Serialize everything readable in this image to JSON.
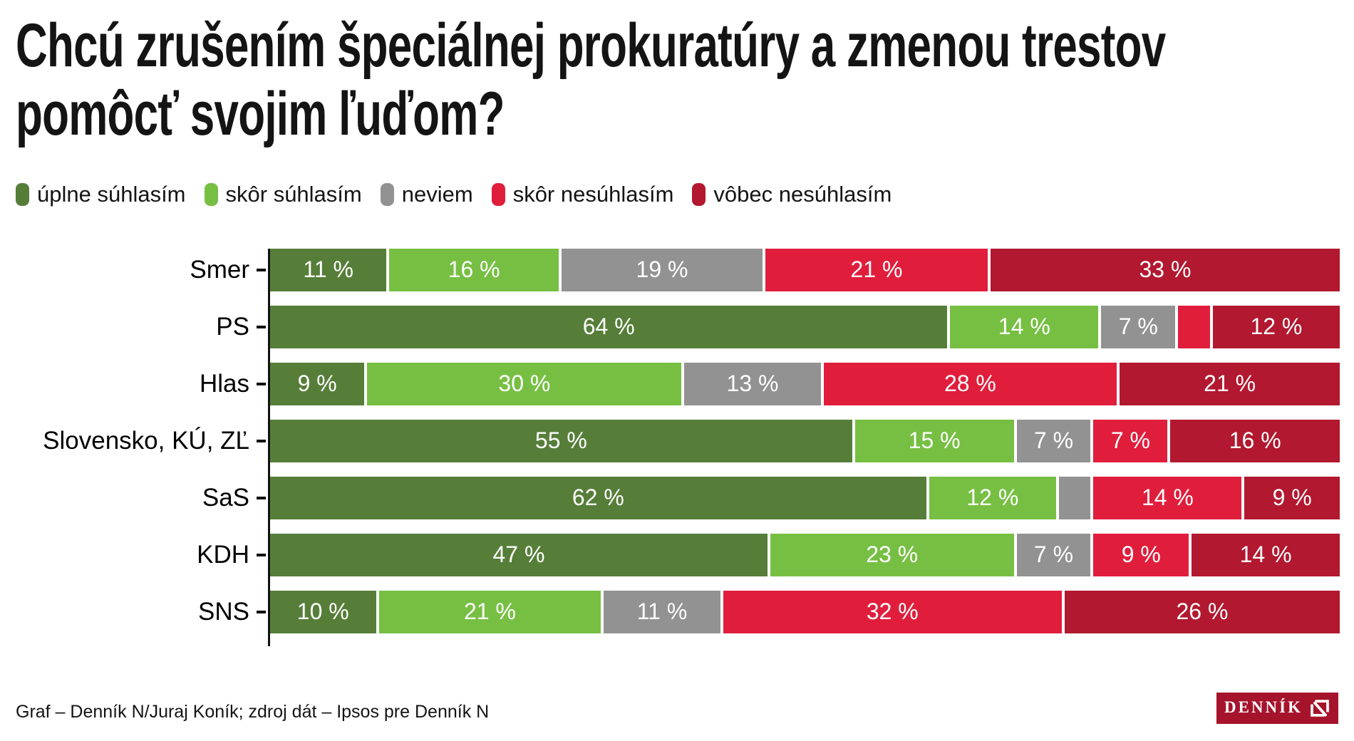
{
  "header": {
    "title": "Chcú zrušením špeciálnej prokuratúry a zmenou trestov pomôcť svojim ľuďom?",
    "title_lines": [
      "Chcú zrušením špeciálnej prokuratúry a zmenou trestov",
      "pomôcť svojim ľuďom?"
    ]
  },
  "chart_data": {
    "type": "bar",
    "orientation": "horizontal",
    "stacked": true,
    "legend_position": "top",
    "xlim": [
      0,
      100
    ],
    "value_suffix": " %",
    "label_min_value": 5,
    "categories": [
      "Smer",
      "PS",
      "Hlas",
      "Slovensko, KÚ, ZĽ",
      "SaS",
      "KDH",
      "SNS"
    ],
    "series": [
      {
        "name": "úplne súhlasím",
        "color": "#567E39",
        "values": [
          11,
          64,
          9,
          55,
          62,
          47,
          10
        ]
      },
      {
        "name": "skôr súhlasím",
        "color": "#76BF43",
        "values": [
          16,
          14,
          30,
          15,
          12,
          23,
          21
        ]
      },
      {
        "name": "neviem",
        "color": "#929292",
        "values": [
          19,
          7,
          13,
          7,
          3,
          7,
          11
        ]
      },
      {
        "name": "skôr nesúhlasím",
        "color": "#E01E3C",
        "values": [
          21,
          3,
          28,
          7,
          14,
          9,
          32
        ]
      },
      {
        "name": "vôbec nesúhlasím",
        "color": "#B2182F",
        "values": [
          33,
          12,
          21,
          16,
          9,
          14,
          26
        ]
      }
    ]
  },
  "footer": {
    "credit": "Graf – Denník N/Juraj Koník; zdroj dát – Ipsos pre Denník N",
    "logo_text": "DENNÍK",
    "logo_color": "#A6142C"
  }
}
